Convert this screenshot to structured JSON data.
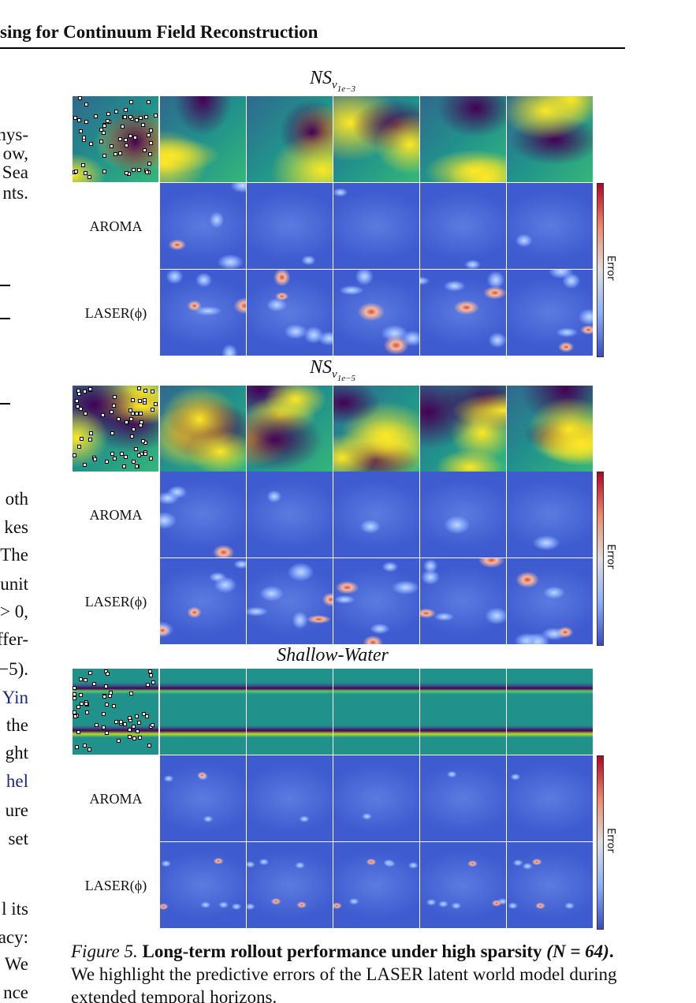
{
  "header": {
    "title": "sing for Continuum Field Reconstruction"
  },
  "left_column": {
    "lines": [
      "hys-",
      "ow,",
      "Sea",
      "nts.",
      "oth",
      "kes",
      "The",
      "unit",
      "> 0,",
      "ffer-",
      "−5).",
      "Yin",
      "the",
      "ght",
      "hel",
      "ure",
      "set",
      "l its",
      "acy:",
      "We",
      "nce"
    ]
  },
  "panels": [
    {
      "title": "NS",
      "title_sub": "ν",
      "title_subsub": "1e−3",
      "rows": [
        "AROMA",
        "LASER(ϕ)"
      ],
      "colorbar_label": "Error"
    },
    {
      "title": "NS",
      "title_sub": "ν",
      "title_subsub": "1e−5",
      "rows": [
        "AROMA",
        "LASER(ϕ)"
      ],
      "colorbar_label": "Error"
    },
    {
      "title": "Shallow-Water",
      "rows": [
        "AROMA",
        "LASER(ϕ)"
      ],
      "colorbar_label": "Error"
    }
  ],
  "caption": {
    "label": "Figure 5.",
    "bold": "Long-term rollout performance under high sparsity",
    "math": "(N = 64)",
    "bold_end": ".",
    "text": "We highlight the predictive errors of the LASER latent world model during extended temporal horizons."
  }
}
